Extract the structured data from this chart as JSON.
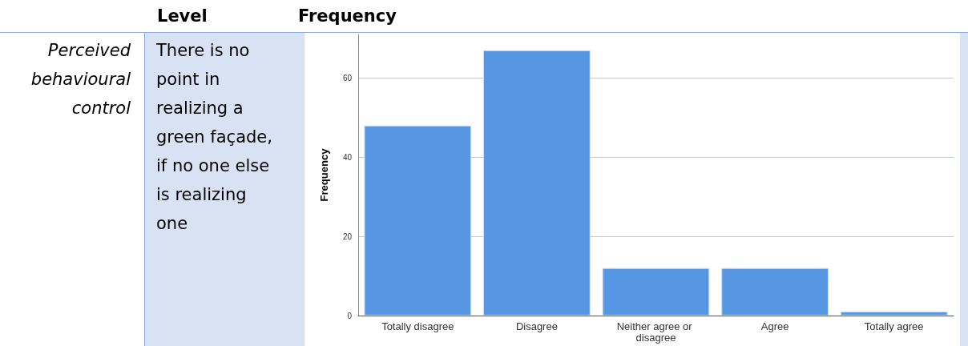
{
  "chart_data": {
    "type": "bar",
    "ylabel": "Frequency",
    "categories": [
      "Totally disagree",
      "Disagree",
      "Neither agree or disagree",
      "Agree",
      "Totally agree"
    ],
    "values": [
      48,
      67,
      12,
      12,
      1
    ],
    "color": "#5696e3",
    "ylim": [
      0,
      71
    ],
    "yticks": [
      0,
      20,
      40,
      60
    ],
    "grid": "y",
    "annotations": [
      "Level",
      "Frequency",
      "Perceived behavioural control",
      "There is no point in realizing a green façade, if no one else is realizing one"
    ]
  }
}
